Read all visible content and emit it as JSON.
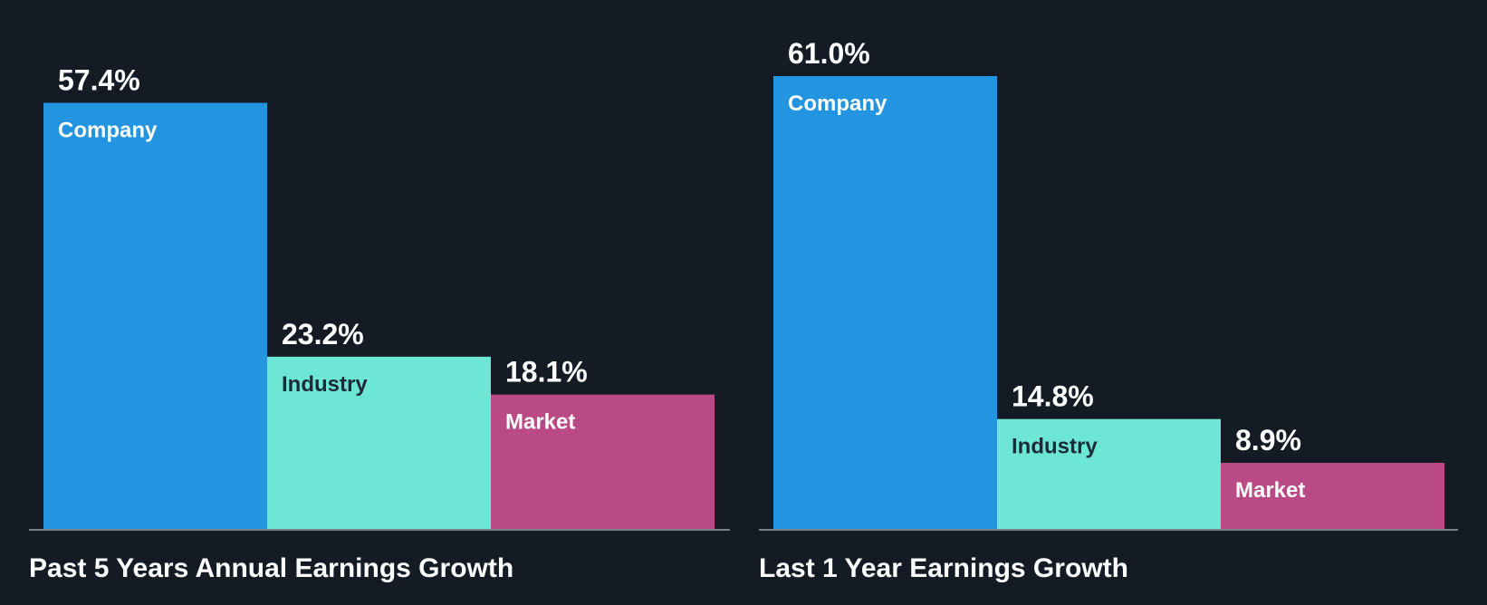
{
  "colors": {
    "background": "#151b24",
    "company": "#2394e0",
    "industry": "#6ee6d6",
    "market": "#b94a86",
    "baseline": "#7a7f87",
    "label_light": "#ffffff",
    "label_dark": "#1b2a38"
  },
  "chart_data": [
    {
      "type": "bar",
      "title": "Past 5 Years Annual Earnings Growth",
      "categories": [
        "Company",
        "Industry",
        "Market"
      ],
      "values": [
        57.4,
        23.2,
        18.1
      ],
      "value_labels": [
        "57.4%",
        "23.2%",
        "18.1%"
      ],
      "unit": "%",
      "ylim": [
        0,
        61.0
      ],
      "xlabel": "",
      "ylabel": "",
      "grid": false,
      "legend": "none"
    },
    {
      "type": "bar",
      "title": "Last 1 Year Earnings Growth",
      "categories": [
        "Company",
        "Industry",
        "Market"
      ],
      "values": [
        61.0,
        14.8,
        8.9
      ],
      "value_labels": [
        "61.0%",
        "14.8%",
        "8.9%"
      ],
      "unit": "%",
      "ylim": [
        0,
        61.0
      ],
      "xlabel": "",
      "ylabel": "",
      "grid": false,
      "legend": "none"
    }
  ]
}
